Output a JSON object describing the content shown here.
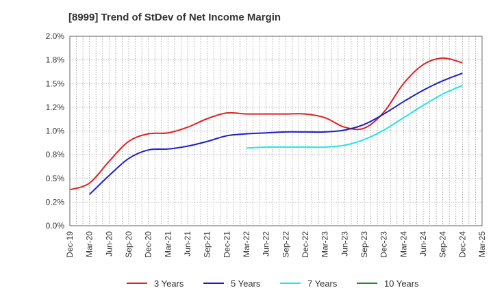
{
  "chart_data": {
    "type": "line",
    "title": "[8999]  Trend of StDev of Net Income Margin",
    "xlabel": "",
    "ylabel": "",
    "ylim": [
      0,
      0.02
    ],
    "grid": true,
    "legend_position": "bottom",
    "x": [
      "Dec-19",
      "Mar-20",
      "Jun-20",
      "Sep-20",
      "Dec-20",
      "Mar-21",
      "Jun-21",
      "Sep-21",
      "Dec-21",
      "Mar-22",
      "Jun-22",
      "Sep-22",
      "Dec-22",
      "Mar-23",
      "Jun-23",
      "Sep-23",
      "Dec-23",
      "Mar-24",
      "Jun-24",
      "Sep-24",
      "Dec-24",
      "Mar-25"
    ],
    "y_ticks": [
      "0.0%",
      "0.2%",
      "0.5%",
      "0.8%",
      "1.0%",
      "1.2%",
      "1.5%",
      "1.8%",
      "2.0%"
    ],
    "series": [
      {
        "name": "3 Years",
        "color": "#e02020",
        "values": [
          0.0038,
          0.0045,
          0.0068,
          0.0089,
          0.0097,
          0.0098,
          0.0104,
          0.0113,
          0.0119,
          0.0118,
          0.0118,
          0.0118,
          0.0118,
          0.0114,
          0.0104,
          0.0103,
          0.012,
          0.015,
          0.017,
          0.0177,
          0.0172,
          null
        ]
      },
      {
        "name": "5 Years",
        "color": "#1c1ccf",
        "values": [
          null,
          0.0033,
          0.0053,
          0.0071,
          0.008,
          0.0081,
          0.0084,
          0.0089,
          0.0095,
          0.0097,
          0.0098,
          0.0099,
          0.0099,
          0.0099,
          0.0101,
          0.0107,
          0.0118,
          0.0131,
          0.0143,
          0.0153,
          0.0161,
          null
        ]
      },
      {
        "name": "7 Years",
        "color": "#20e6e6",
        "values": [
          null,
          null,
          null,
          null,
          null,
          null,
          null,
          null,
          null,
          0.0082,
          0.0083,
          0.0083,
          0.0083,
          0.0083,
          0.0085,
          0.0091,
          0.0101,
          0.0114,
          0.0127,
          0.0139,
          0.0148,
          null
        ]
      },
      {
        "name": "10 Years",
        "color": "#228b22",
        "values": [
          null,
          null,
          null,
          null,
          null,
          null,
          null,
          null,
          null,
          null,
          null,
          null,
          null,
          null,
          null,
          null,
          null,
          null,
          null,
          null,
          null,
          null
        ]
      }
    ]
  }
}
